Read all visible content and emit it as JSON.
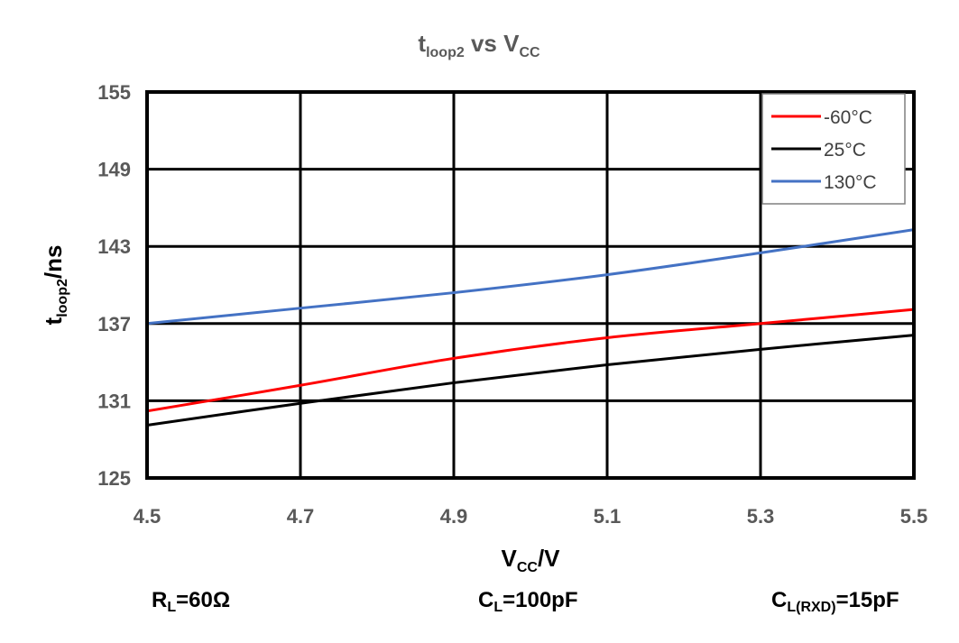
{
  "chart_data": {
    "type": "line",
    "title": {
      "main": "t",
      "sub": "loop2",
      "mid": " vs V",
      "sub2": "CC"
    },
    "xlabel": {
      "main": "V",
      "sub": "CC",
      "rest": "/V"
    },
    "ylabel": {
      "main": "t",
      "sub": "loop2",
      "rest": "/ns"
    },
    "xlim": [
      4.5,
      5.5
    ],
    "ylim": [
      125,
      155
    ],
    "xticks": [
      "4.5",
      "4.7",
      "4.9",
      "5.1",
      "5.3",
      "5.5"
    ],
    "yticks": [
      "155",
      "149",
      "143",
      "137",
      "131",
      "125"
    ],
    "grid": true,
    "legend_position": "top-right",
    "series": [
      {
        "name": "-60°C",
        "color": "#ff0000",
        "x": [
          4.5,
          4.7,
          4.9,
          5.1,
          5.3,
          5.5
        ],
        "y": [
          130.2,
          132.2,
          134.3,
          135.9,
          137.0,
          138.1
        ]
      },
      {
        "name": "25°C",
        "color": "#000000",
        "x": [
          4.5,
          4.7,
          4.9,
          5.1,
          5.3,
          5.5
        ],
        "y": [
          129.1,
          130.8,
          132.4,
          133.8,
          135.0,
          136.1
        ]
      },
      {
        "name": "130°C",
        "color": "#4472c4",
        "x": [
          4.5,
          4.7,
          4.9,
          5.1,
          5.3,
          5.5
        ],
        "y": [
          137.0,
          138.2,
          139.4,
          140.8,
          142.5,
          144.3
        ]
      }
    ]
  },
  "conditions": [
    {
      "main": "R",
      "sub": "L",
      "rest": "=60Ω"
    },
    {
      "main": "C",
      "sub": "L",
      "rest": "=100pF"
    },
    {
      "main": "C",
      "sub": "L(RXD)",
      "rest": "=15pF"
    }
  ]
}
